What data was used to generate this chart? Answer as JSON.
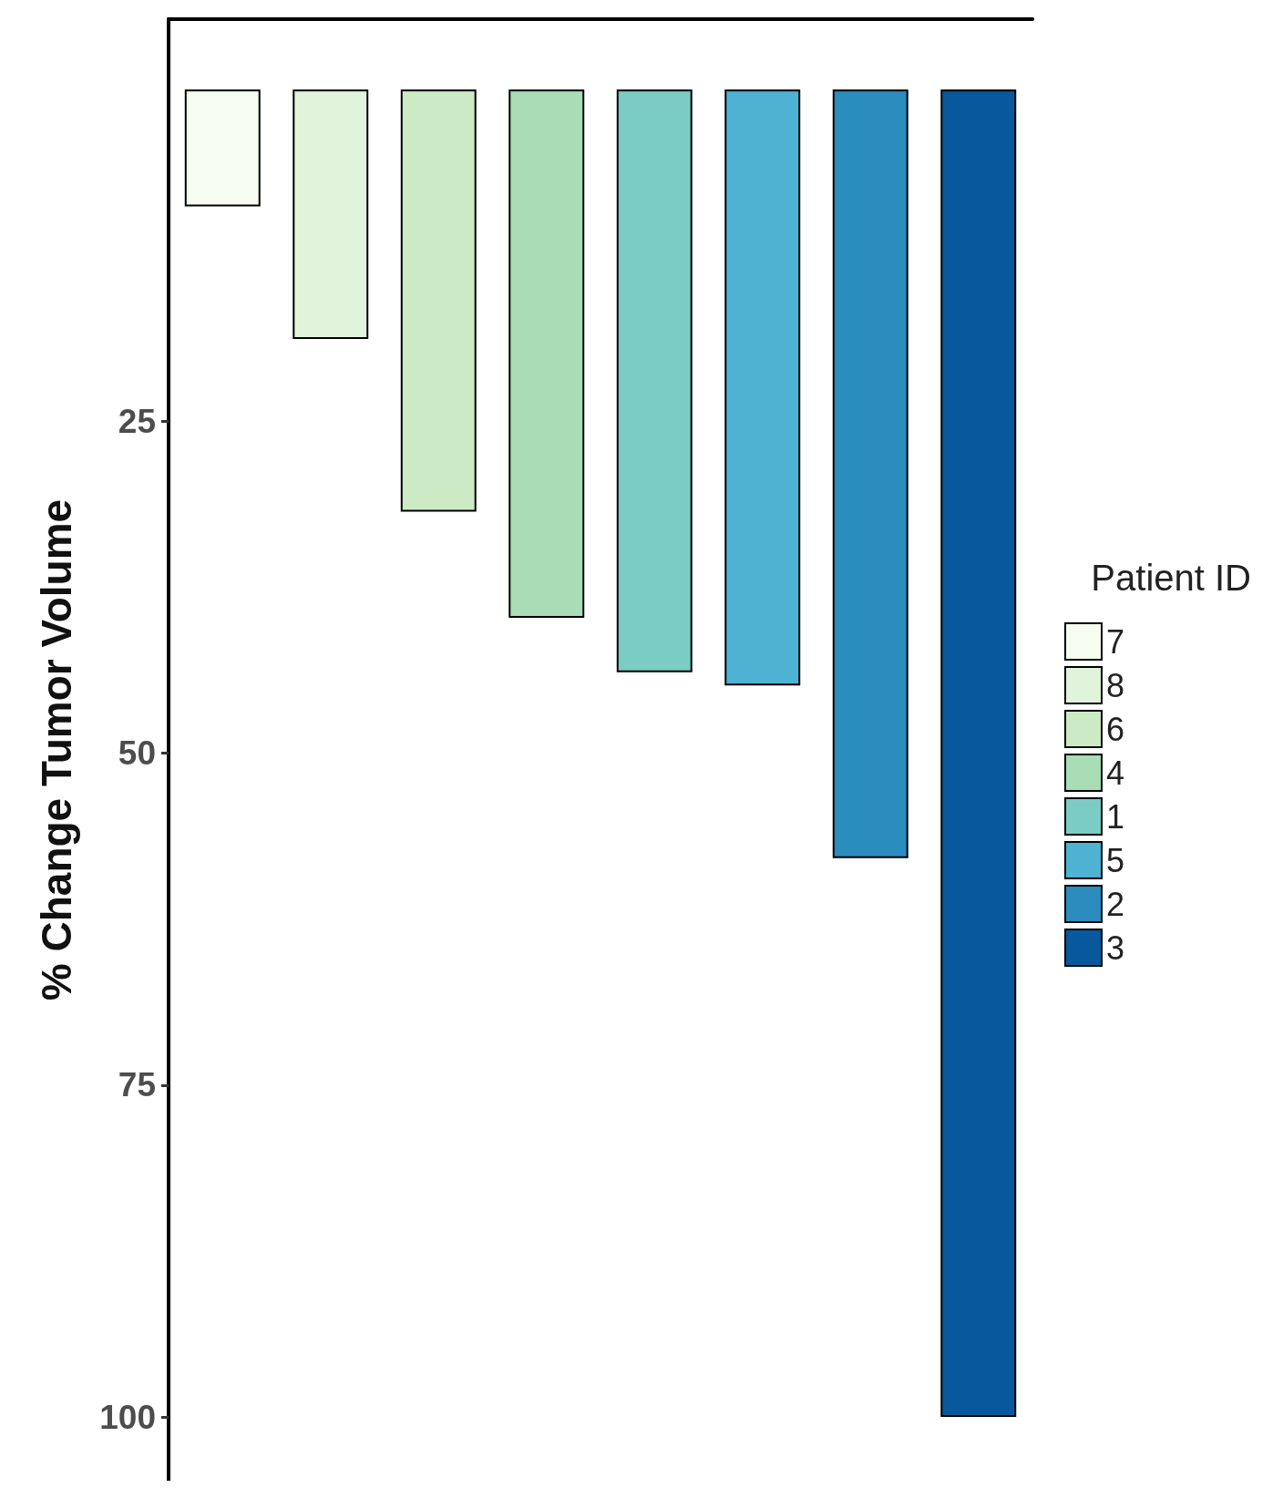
{
  "chart_data": {
    "type": "bar",
    "ylabel": "% Change Tumor Volume",
    "legend_title": "Patient ID",
    "categories": [
      null,
      null,
      null,
      null,
      null,
      null,
      null,
      null
    ],
    "stacked": true,
    "series": [
      {
        "name": "7",
        "color": "#f7fcf0",
        "values": [
          8.8,
          null,
          null,
          null,
          null,
          null,
          null,
          null
        ]
      },
      {
        "name": "8",
        "color": "#e0f3db",
        "values": [
          null,
          18.8,
          null,
          null,
          null,
          null,
          null,
          null
        ]
      },
      {
        "name": "6",
        "color": "#ccebc5",
        "values": [
          null,
          null,
          31.8,
          null,
          null,
          null,
          null,
          null
        ]
      },
      {
        "name": "4",
        "color": "#a8ddb5",
        "values": [
          null,
          null,
          null,
          39.8,
          null,
          null,
          null,
          null
        ]
      },
      {
        "name": "1",
        "color": "#7bccc4",
        "values": [
          null,
          null,
          null,
          null,
          43.9,
          null,
          null,
          null
        ]
      },
      {
        "name": "5",
        "color": "#4eb3d3",
        "values": [
          null,
          null,
          null,
          null,
          null,
          44.9,
          null,
          null
        ]
      },
      {
        "name": "2",
        "color": "#2b8cbe",
        "values": [
          null,
          null,
          null,
          null,
          null,
          null,
          57.9,
          null
        ]
      },
      {
        "name": "3",
        "color": "#08589e",
        "values": [
          null,
          null,
          null,
          null,
          null,
          null,
          null,
          100
        ]
      }
    ],
    "ylim": [
      104.8,
      -5.3
    ],
    "yticks": [
      25,
      50,
      75,
      100
    ],
    "tick_labels": "y",
    "grid": false,
    "legend": "right"
  }
}
